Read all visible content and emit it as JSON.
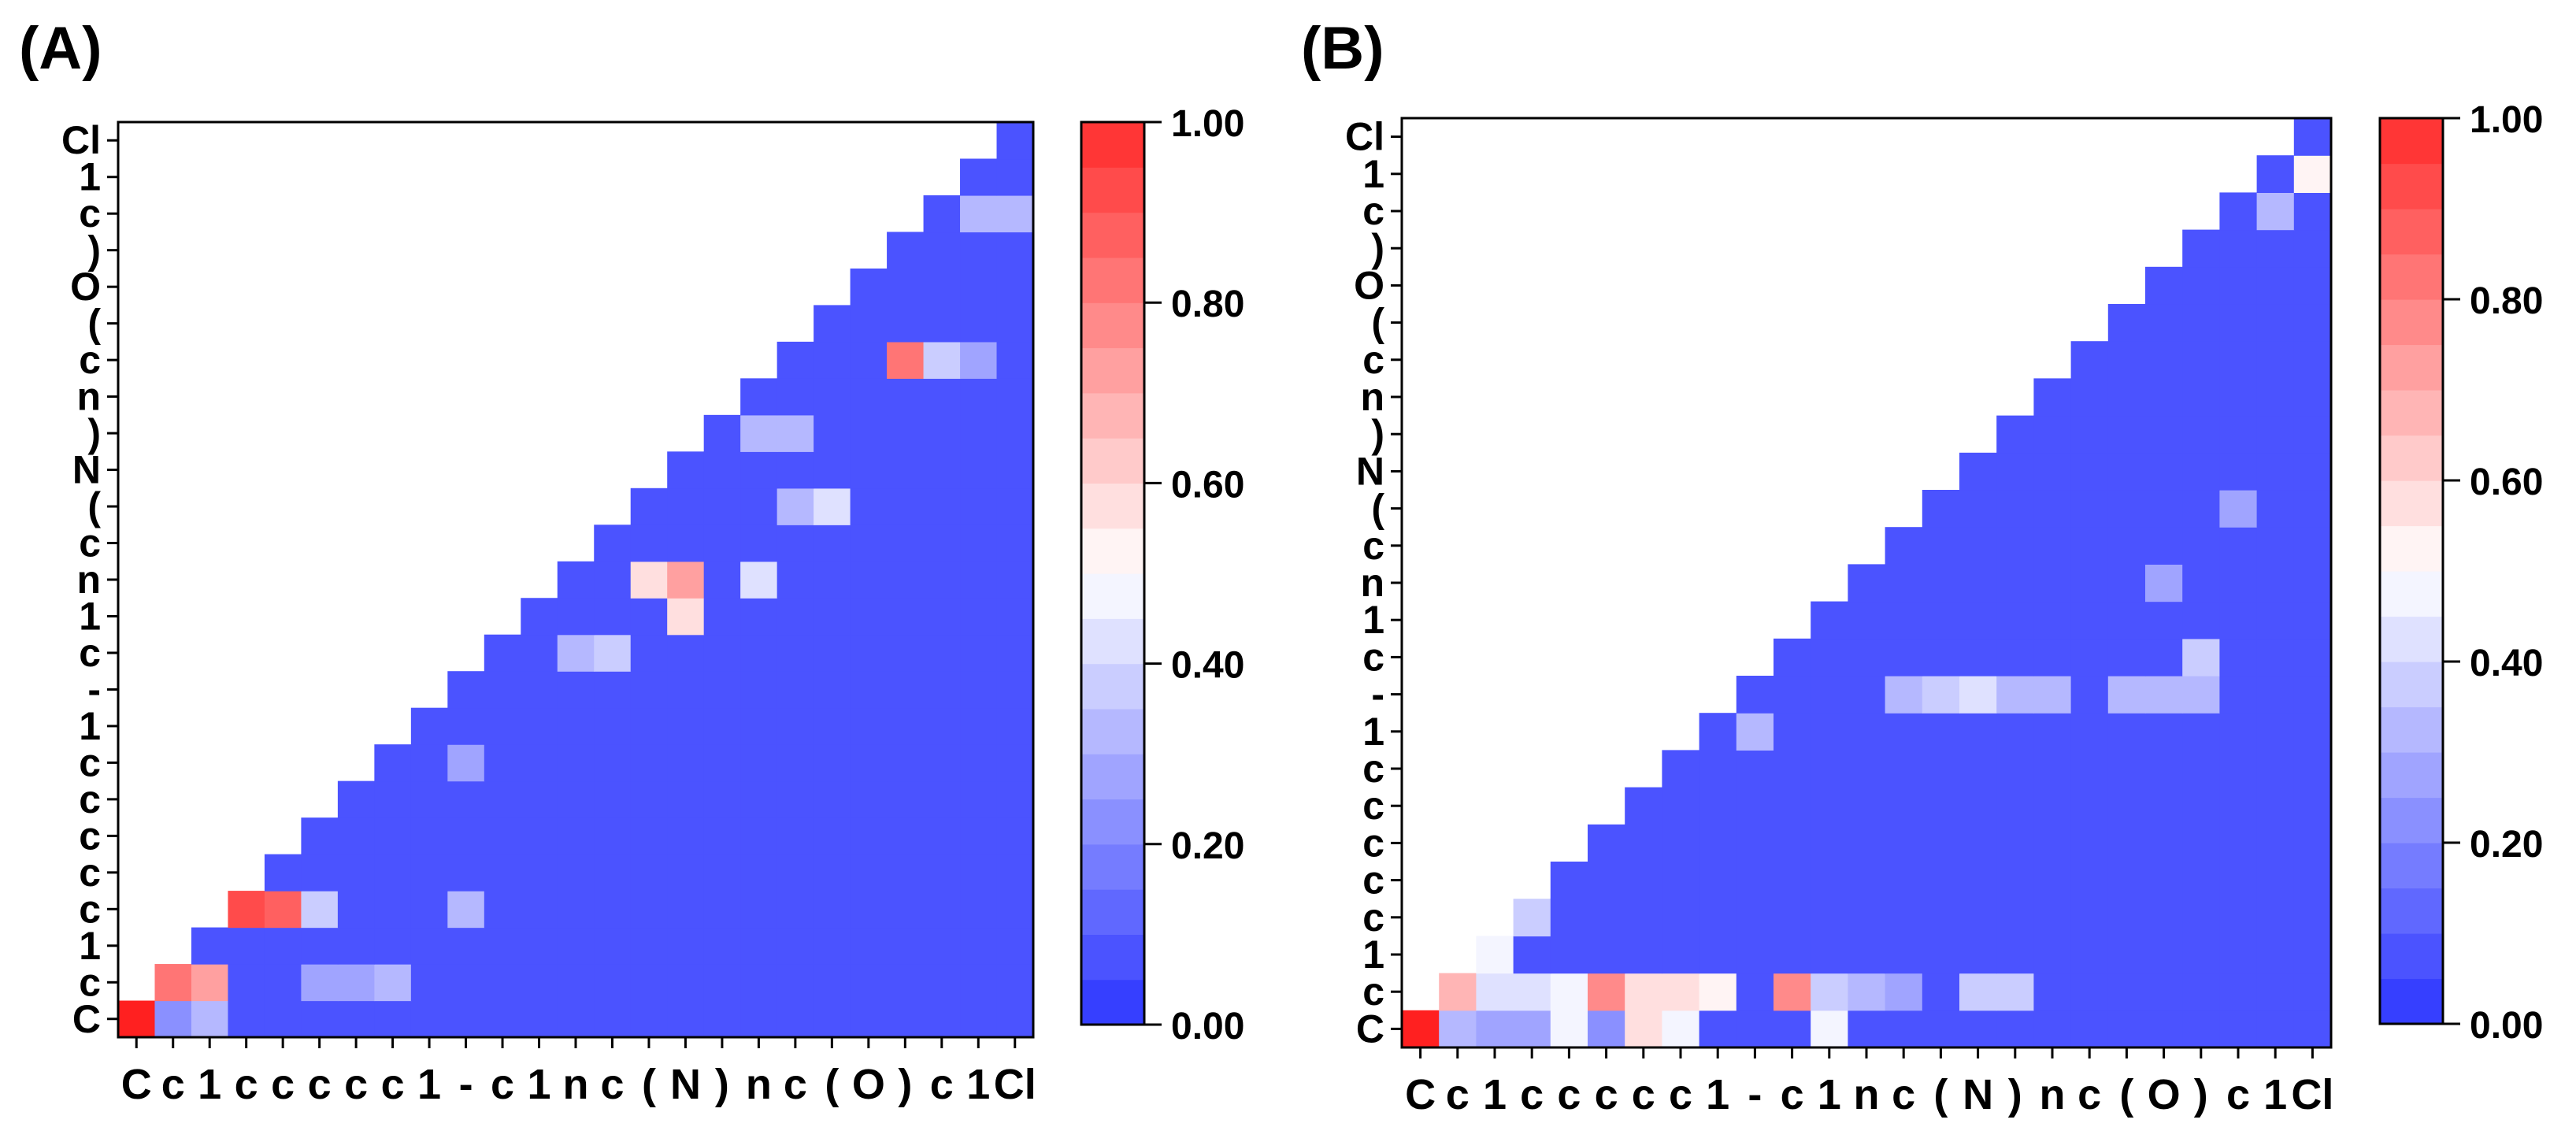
{
  "colors": {
    "low": "#2b35ff",
    "mid": "#ffffff",
    "high": "#ff2b2b"
  },
  "chart_data": [
    {
      "type": "heatmap",
      "panel_label": "(A)",
      "x_tokens": [
        "C",
        "c",
        "1",
        "c",
        "c",
        "c",
        "c",
        "c",
        "1",
        "-",
        "c",
        "1",
        "n",
        "c",
        "(",
        "N",
        ")",
        "n",
        "c",
        "(",
        "O",
        ")",
        "c",
        "1",
        "Cl"
      ],
      "y_tokens_bottom_to_top": [
        "C",
        "c",
        "1",
        "c",
        "c",
        "c",
        "c",
        "c",
        "1",
        "-",
        "c",
        "1",
        "n",
        "c",
        "(",
        "N",
        ")",
        "n",
        "c",
        "(",
        "O",
        ")",
        "c",
        "1",
        "Cl"
      ],
      "mask": "upper-left triangle blank",
      "colorbar": {
        "min": 0.0,
        "max": 1.0,
        "ticks": [
          "0.00",
          "0.20",
          "0.40",
          "0.60",
          "0.80",
          "1.00"
        ]
      },
      "highlights": [
        {
          "x": 0,
          "y": 0,
          "v": 1.0
        },
        {
          "x": 1,
          "y": 0,
          "v": 0.2
        },
        {
          "x": 2,
          "y": 0,
          "v": 0.3
        },
        {
          "x": 1,
          "y": 1,
          "v": 0.8
        },
        {
          "x": 2,
          "y": 1,
          "v": 0.7
        },
        {
          "x": 5,
          "y": 1,
          "v": 0.25
        },
        {
          "x": 6,
          "y": 1,
          "v": 0.25
        },
        {
          "x": 7,
          "y": 1,
          "v": 0.3
        },
        {
          "x": 3,
          "y": 3,
          "v": 0.9
        },
        {
          "x": 4,
          "y": 3,
          "v": 0.85
        },
        {
          "x": 5,
          "y": 3,
          "v": 0.35
        },
        {
          "x": 9,
          "y": 3,
          "v": 0.3
        },
        {
          "x": 9,
          "y": 7,
          "v": 0.25
        },
        {
          "x": 12,
          "y": 10,
          "v": 0.3
        },
        {
          "x": 13,
          "y": 10,
          "v": 0.35
        },
        {
          "x": 15,
          "y": 11,
          "v": 0.55
        },
        {
          "x": 14,
          "y": 12,
          "v": 0.55
        },
        {
          "x": 15,
          "y": 12,
          "v": 0.7
        },
        {
          "x": 17,
          "y": 12,
          "v": 0.4
        },
        {
          "x": 18,
          "y": 14,
          "v": 0.3
        },
        {
          "x": 19,
          "y": 14,
          "v": 0.4
        },
        {
          "x": 17,
          "y": 16,
          "v": 0.3
        },
        {
          "x": 18,
          "y": 16,
          "v": 0.3
        },
        {
          "x": 21,
          "y": 18,
          "v": 0.8
        },
        {
          "x": 22,
          "y": 18,
          "v": 0.35
        },
        {
          "x": 23,
          "y": 18,
          "v": 0.25
        },
        {
          "x": 23,
          "y": 22,
          "v": 0.3
        },
        {
          "x": 24,
          "y": 22,
          "v": 0.3
        }
      ],
      "default_value": 0.05
    },
    {
      "type": "heatmap",
      "panel_label": "(B)",
      "x_tokens": [
        "C",
        "c",
        "1",
        "c",
        "c",
        "c",
        "c",
        "c",
        "1",
        "-",
        "c",
        "1",
        "n",
        "c",
        "(",
        "N",
        ")",
        "n",
        "c",
        "(",
        "O",
        ")",
        "c",
        "1",
        "Cl"
      ],
      "y_tokens_bottom_to_top": [
        "C",
        "c",
        "1",
        "c",
        "c",
        "c",
        "c",
        "c",
        "1",
        "-",
        "c",
        "1",
        "n",
        "c",
        "(",
        "N",
        ")",
        "n",
        "c",
        "(",
        "O",
        ")",
        "c",
        "1",
        "Cl"
      ],
      "mask": "upper-left triangle blank",
      "colorbar": {
        "min": 0.0,
        "max": 1.0,
        "ticks": [
          "0.00",
          "0.20",
          "0.40",
          "0.60",
          "0.80",
          "1.00"
        ]
      },
      "highlights": [
        {
          "x": 0,
          "y": 0,
          "v": 1.0
        },
        {
          "x": 1,
          "y": 0,
          "v": 0.3
        },
        {
          "x": 2,
          "y": 0,
          "v": 0.25
        },
        {
          "x": 3,
          "y": 0,
          "v": 0.25
        },
        {
          "x": 4,
          "y": 0,
          "v": 0.45
        },
        {
          "x": 5,
          "y": 0,
          "v": 0.2
        },
        {
          "x": 6,
          "y": 0,
          "v": 0.55
        },
        {
          "x": 7,
          "y": 0,
          "v": 0.45
        },
        {
          "x": 11,
          "y": 0,
          "v": 0.45
        },
        {
          "x": 1,
          "y": 1,
          "v": 0.65
        },
        {
          "x": 2,
          "y": 1,
          "v": 0.4
        },
        {
          "x": 3,
          "y": 1,
          "v": 0.4
        },
        {
          "x": 4,
          "y": 1,
          "v": 0.45
        },
        {
          "x": 5,
          "y": 1,
          "v": 0.75
        },
        {
          "x": 6,
          "y": 1,
          "v": 0.55
        },
        {
          "x": 7,
          "y": 1,
          "v": 0.55
        },
        {
          "x": 8,
          "y": 1,
          "v": 0.5
        },
        {
          "x": 10,
          "y": 1,
          "v": 0.75
        },
        {
          "x": 11,
          "y": 1,
          "v": 0.35
        },
        {
          "x": 12,
          "y": 1,
          "v": 0.3
        },
        {
          "x": 13,
          "y": 1,
          "v": 0.25
        },
        {
          "x": 15,
          "y": 1,
          "v": 0.35
        },
        {
          "x": 16,
          "y": 1,
          "v": 0.35
        },
        {
          "x": 2,
          "y": 2,
          "v": 0.45
        },
        {
          "x": 3,
          "y": 3,
          "v": 0.35
        },
        {
          "x": 9,
          "y": 8,
          "v": 0.3
        },
        {
          "x": 13,
          "y": 9,
          "v": 0.3
        },
        {
          "x": 14,
          "y": 9,
          "v": 0.35
        },
        {
          "x": 15,
          "y": 9,
          "v": 0.4
        },
        {
          "x": 16,
          "y": 9,
          "v": 0.3
        },
        {
          "x": 17,
          "y": 9,
          "v": 0.3
        },
        {
          "x": 19,
          "y": 9,
          "v": 0.3
        },
        {
          "x": 20,
          "y": 9,
          "v": 0.3
        },
        {
          "x": 21,
          "y": 9,
          "v": 0.3
        },
        {
          "x": 21,
          "y": 10,
          "v": 0.35
        },
        {
          "x": 20,
          "y": 12,
          "v": 0.25
        },
        {
          "x": 22,
          "y": 14,
          "v": 0.25
        },
        {
          "x": 23,
          "y": 22,
          "v": 0.3
        },
        {
          "x": 24,
          "y": 23,
          "v": 0.5
        }
      ],
      "default_value": 0.05
    }
  ]
}
